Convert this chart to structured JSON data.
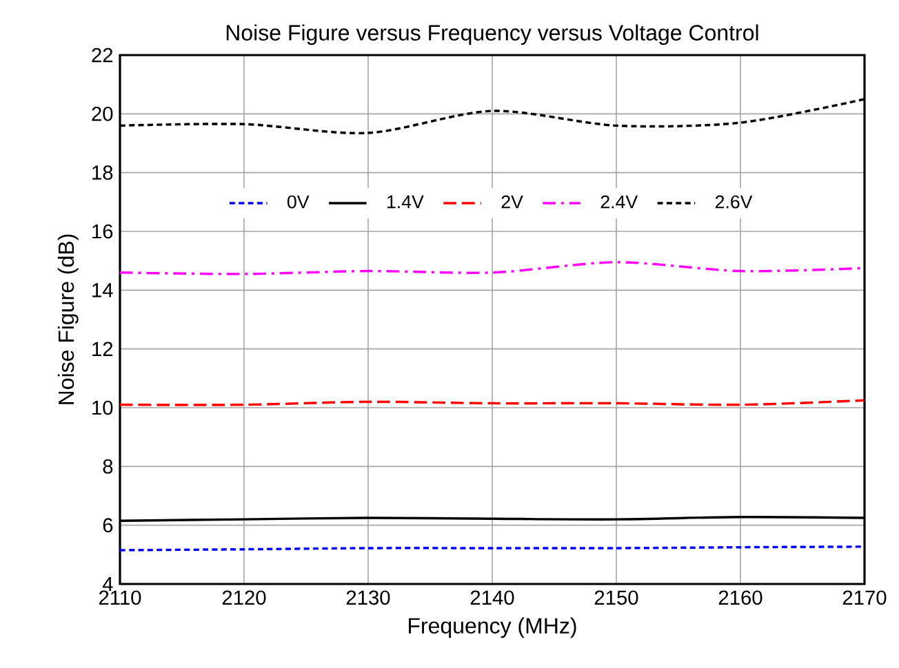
{
  "chart_data": {
    "type": "line",
    "title": "Noise Figure versus Frequency versus Voltage Control",
    "xlabel": "Frequency (MHz)",
    "ylabel": "Noise Figure (dB)",
    "x": [
      2110,
      2120,
      2130,
      2140,
      2150,
      2160,
      2170
    ],
    "series": [
      {
        "name": "0V",
        "color": "#0000ff",
        "line_style": "dashed",
        "values": [
          5.15,
          5.18,
          5.22,
          5.22,
          5.22,
          5.25,
          5.27
        ]
      },
      {
        "name": "1.4V",
        "color": "#000000",
        "line_style": "solid",
        "values": [
          6.15,
          6.2,
          6.25,
          6.22,
          6.2,
          6.28,
          6.25
        ]
      },
      {
        "name": "2V",
        "color": "#ff0000",
        "line_style": "longdash",
        "values": [
          10.1,
          10.1,
          10.2,
          10.15,
          10.15,
          10.1,
          10.25
        ]
      },
      {
        "name": "2.4V",
        "color": "#ff00ff",
        "line_style": "dashdot",
        "values": [
          14.6,
          14.55,
          14.65,
          14.6,
          14.95,
          14.65,
          14.75
        ]
      },
      {
        "name": "2.6V",
        "color": "#000000",
        "line_style": "dashed",
        "values": [
          19.6,
          19.65,
          19.35,
          20.1,
          19.6,
          19.7,
          20.5
        ]
      }
    ],
    "xlim": [
      2110,
      2170
    ],
    "xticks": [
      2110,
      2120,
      2130,
      2140,
      2150,
      2160,
      2170
    ],
    "ylim": [
      4,
      22
    ],
    "yticks": [
      4,
      6,
      8,
      10,
      12,
      14,
      16,
      18,
      20,
      22
    ],
    "grid": true,
    "legend": "top",
    "marker": "none"
  }
}
